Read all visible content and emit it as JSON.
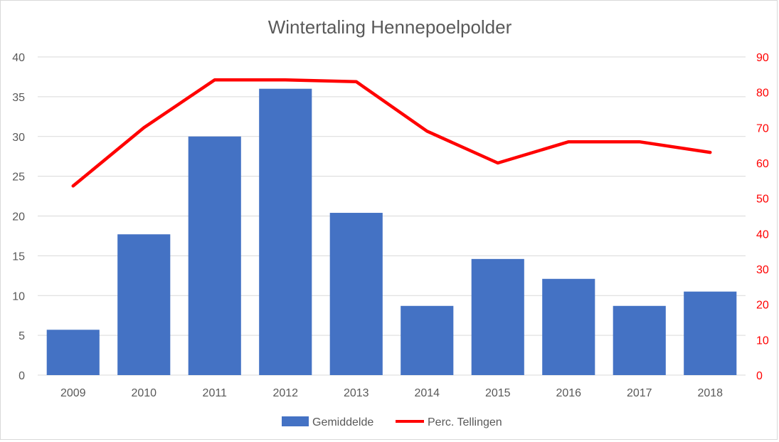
{
  "chart_data": {
    "type": "bar",
    "title": "Wintertaling Hennepoelpolder",
    "categories": [
      "2009",
      "2010",
      "2011",
      "2012",
      "2013",
      "2014",
      "2015",
      "2016",
      "2017",
      "2018"
    ],
    "series": [
      {
        "name": "Gemiddelde",
        "type": "bar",
        "axis": "left",
        "color": "#4472c4",
        "values": [
          5.7,
          17.7,
          30.0,
          36.0,
          20.4,
          8.7,
          14.6,
          12.1,
          8.7,
          10.5
        ]
      },
      {
        "name": "Perc. Tellingen",
        "type": "line",
        "axis": "right",
        "color": "#ff0000",
        "values": [
          53.5,
          70.0,
          83.5,
          83.5,
          83.0,
          69.0,
          60.0,
          66.0,
          66.0,
          63.0
        ]
      }
    ],
    "ylim_left": [
      0,
      40
    ],
    "yticks_left": [
      0,
      5,
      10,
      15,
      20,
      25,
      30,
      35,
      40
    ],
    "ylim_right": [
      0,
      90
    ],
    "yticks_right": [
      0,
      10,
      20,
      30,
      40,
      50,
      60,
      70,
      80,
      90
    ],
    "grid": true,
    "legend_position": "bottom"
  }
}
